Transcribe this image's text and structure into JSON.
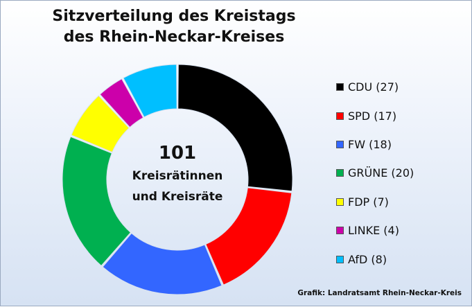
{
  "chart_data": {
    "type": "pie",
    "title_line1": "Sitzverteilung des Kreistags",
    "title_line2": "des Rhein-Neckar-Kreises",
    "center_value": "101",
    "center_line1": "Kreisrätinnen",
    "center_line2": "und Kreisräte",
    "source": "Grafik: Landratsamt  Rhein-Neckar-Kreis",
    "legend_placement": "right",
    "slices": [
      {
        "name": "CDU",
        "value": 27,
        "legend": "CDU (27)",
        "color": "#000000"
      },
      {
        "name": "SPD",
        "value": 17,
        "legend": "SPD (17)",
        "color": "#ff0000"
      },
      {
        "name": "FW",
        "value": 18,
        "legend": "FW (18)",
        "color": "#3366ff"
      },
      {
        "name": "GRÜNE",
        "value": 20,
        "legend": "GRÜNE (20)",
        "color": "#00b050"
      },
      {
        "name": "FDP",
        "value": 7,
        "legend": "FDP (7)",
        "color": "#ffff00"
      },
      {
        "name": "LINKE",
        "value": 4,
        "legend": "LINKE (4)",
        "color": "#cc00aa"
      },
      {
        "name": "AfD",
        "value": 8,
        "legend": "AfD (8)",
        "color": "#00bfff"
      }
    ]
  }
}
